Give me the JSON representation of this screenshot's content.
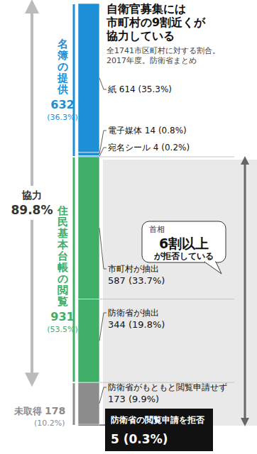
{
  "chart_data": {
    "type": "bar",
    "stacked": true,
    "data_labels": true,
    "tick_labels": false,
    "title": "自衛官募集には市町村の9割近くが協力している",
    "subtitle": "全1741市区町村に対する割合。2017年度。防衛省まとめ",
    "categories": [
      null
    ],
    "ylim": [
      0,
      1741
    ],
    "series": [
      {
        "name": "紙",
        "color": "#1d8fd6",
        "values": [
          614
        ],
        "value_labels": [
          "614 (35.3%)"
        ]
      },
      {
        "name": "電子媒体",
        "color": "#1d8fd6",
        "values": [
          14
        ],
        "value_labels": [
          "14 (0.8%)"
        ]
      },
      {
        "name": "宛名シール",
        "color": "#1d8fd6",
        "values": [
          4
        ],
        "value_labels": [
          "4 (0.2%)"
        ]
      },
      {
        "name": "市町村が抽出",
        "color": "#3fae67",
        "values": [
          587
        ],
        "value_labels": [
          "587 (33.7%)"
        ]
      },
      {
        "name": "防衛省が抽出",
        "color": "#3fae67",
        "values": [
          344
        ],
        "value_labels": [
          "344 (19.8%)"
        ]
      },
      {
        "name": "防衛省がもともと閲覧申請せず",
        "color": "#8c8c8c",
        "values": [
          173
        ],
        "value_labels": [
          "173 (9.9%)"
        ]
      },
      {
        "name": "防衛省の閲覧申請を拒否",
        "color": "#333333",
        "values": [
          5
        ],
        "value_labels": [
          "5 (0.3%)"
        ]
      }
    ],
    "groups": [
      {
        "name": "名簿の提供",
        "value": 632,
        "share": "(36.3%)",
        "color": "#1d8fd6"
      },
      {
        "name": "住民基本台帳の閲覧",
        "value": 931,
        "share": "(53.5%)",
        "color": "#3fae67"
      },
      {
        "name": "未取得",
        "value": 178,
        "share": "(10.2%)",
        "color": "#8c8c8c"
      }
    ],
    "total": {
      "name": "協力",
      "value": 89.8,
      "label": "89.8%"
    },
    "callout": {
      "speaker": "首相",
      "text": "6割以上が拒否している"
    }
  }
}
